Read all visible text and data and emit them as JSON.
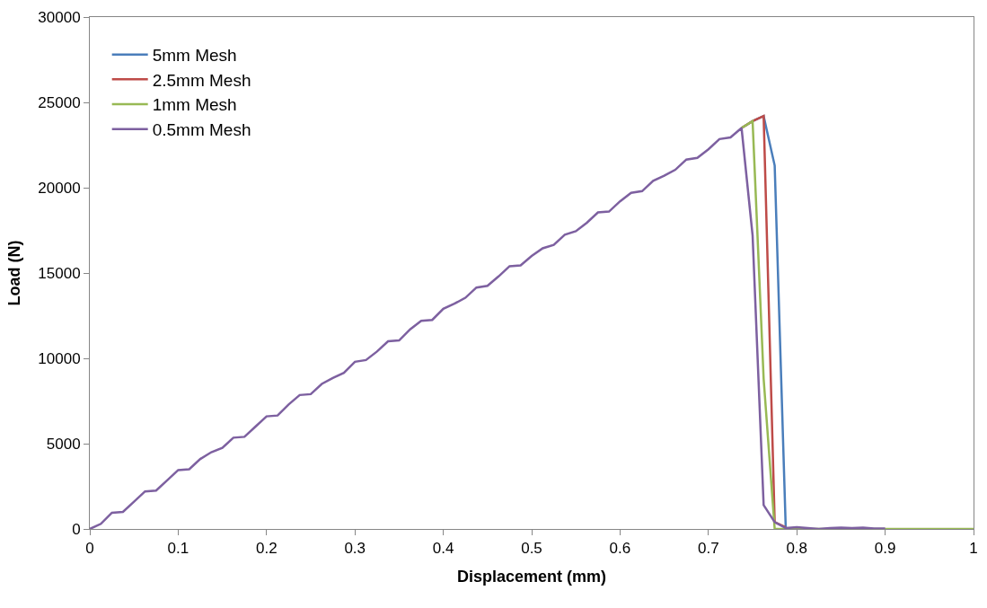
{
  "chart_data": {
    "type": "line",
    "xlabel": "Displacement (mm)",
    "ylabel": "Load (N)",
    "xlim": [
      0,
      1
    ],
    "xticks": [
      0,
      0.1,
      0.2,
      0.3,
      0.4,
      0.5,
      0.6,
      0.7,
      0.8,
      0.9,
      1
    ],
    "ylim": [
      0,
      30000
    ],
    "yticks": [
      0,
      5000,
      10000,
      15000,
      20000,
      25000,
      30000
    ],
    "grid": false,
    "legend": "top left",
    "marker": "none",
    "line_style": "solid",
    "series": [
      {
        "name": "5mm Mesh",
        "color": "#4a7ebb",
        "x": [
          0.7375,
          0.75,
          0.7625,
          0.775,
          0.7875
        ],
        "values": [
          23500,
          23900,
          24200,
          21300,
          50
        ]
      },
      {
        "name": "2.5mm Mesh",
        "color": "#be4b48",
        "x": [
          0.7375,
          0.75,
          0.7625,
          0.775,
          0.7875
        ],
        "values": [
          23500,
          23900,
          24200,
          400,
          100
        ]
      },
      {
        "name": "1mm Mesh",
        "color": "#98b954",
        "x": [
          0.7375,
          0.75,
          0.7625,
          0.775,
          0.8,
          0.9,
          1
        ],
        "values": [
          23500,
          23900,
          8800,
          0,
          0,
          0,
          0
        ]
      },
      {
        "name": "0.5mm Mesh",
        "color": "#7d60a0",
        "x": [
          0,
          0.0125,
          0.025,
          0.0375,
          0.05,
          0.0625,
          0.075,
          0.0875,
          0.1,
          0.1125,
          0.125,
          0.1375,
          0.15,
          0.1625,
          0.175,
          0.1875,
          0.2,
          0.2125,
          0.225,
          0.2375,
          0.25,
          0.2625,
          0.275,
          0.2875,
          0.3,
          0.3125,
          0.325,
          0.3375,
          0.35,
          0.3625,
          0.375,
          0.3875,
          0.4,
          0.4125,
          0.425,
          0.4375,
          0.45,
          0.4625,
          0.475,
          0.4875,
          0.5,
          0.5125,
          0.525,
          0.5375,
          0.55,
          0.5625,
          0.575,
          0.5875,
          0.6,
          0.6125,
          0.625,
          0.6375,
          0.65,
          0.6625,
          0.675,
          0.6875,
          0.7,
          0.7125,
          0.725,
          0.7375,
          0.75,
          0.7625,
          0.775,
          0.7875,
          0.8,
          0.8125,
          0.825,
          0.8375,
          0.85,
          0.8625,
          0.875,
          0.8875,
          0.9
        ],
        "values": [
          0,
          300,
          950,
          1000,
          1600,
          2200,
          2250,
          2850,
          3450,
          3500,
          4100,
          4500,
          4750,
          5350,
          5400,
          6000,
          6600,
          6650,
          7300,
          7850,
          7900,
          8500,
          8850,
          9150,
          9800,
          9900,
          10400,
          11000,
          11050,
          11700,
          12200,
          12250,
          12900,
          13200,
          13550,
          14150,
          14250,
          14800,
          15400,
          15450,
          16000,
          16450,
          16650,
          17250,
          17450,
          17950,
          18550,
          18600,
          19200,
          19700,
          19800,
          20400,
          20700,
          21050,
          21650,
          21750,
          22250,
          22850,
          22950,
          23500,
          17200,
          1400,
          400,
          50,
          100,
          50,
          0,
          50,
          80,
          50,
          80,
          30,
          30
        ]
      }
    ]
  }
}
